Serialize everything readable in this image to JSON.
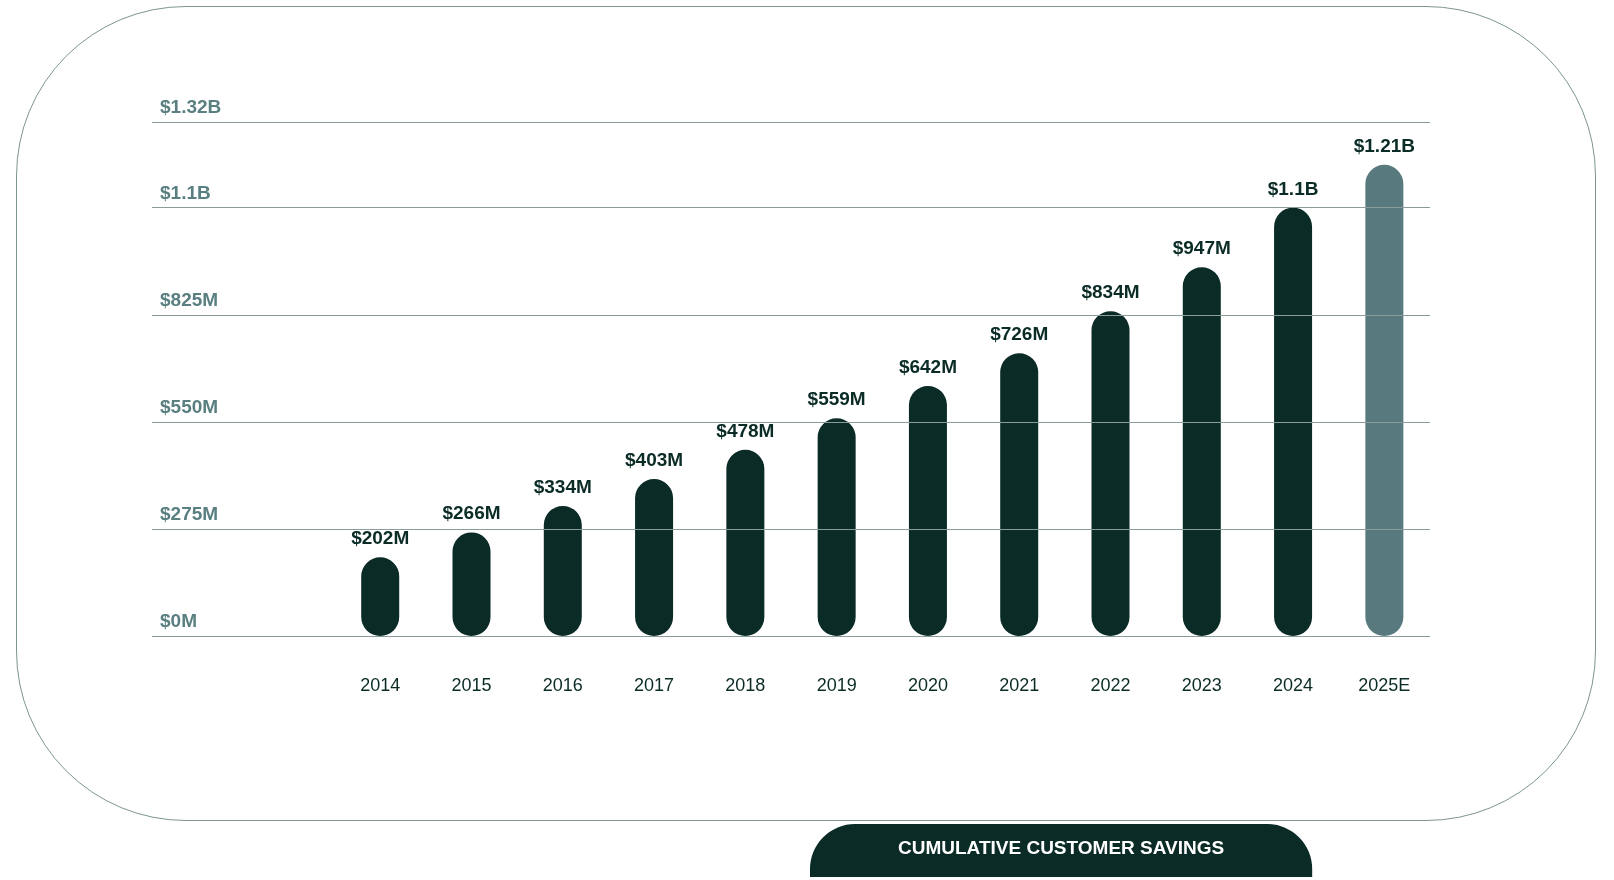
{
  "chart_data": {
    "type": "bar",
    "title": "CUMULATIVE CUSTOMER SAVINGS",
    "categories": [
      null,
      null,
      "2014",
      "2015",
      "2016",
      "2017",
      "2018",
      "2019",
      "2020",
      "2021",
      "2022",
      "2023",
      "2024",
      "2025E"
    ],
    "values": [
      null,
      null,
      202000000,
      266000000,
      334000000,
      403000000,
      478000000,
      559000000,
      642000000,
      726000000,
      834000000,
      947000000,
      1100000000,
      1210000000
    ],
    "colors": [
      "#0a2b26",
      "#0a2b26",
      "#0a2b26",
      "#0a2b26",
      "#0a2b26",
      "#0a2b26",
      "#0a2b26",
      "#0a2b26",
      "#0a2b26",
      "#0a2b26",
      "#0a2b26",
      "#0a2b26",
      "#0a2b26",
      "#587a7e"
    ],
    "value_labels": [
      null,
      null,
      "$202M",
      "$266M",
      "$334M",
      "$403M",
      "$478M",
      "$559M",
      "$642M",
      "$726M",
      "$834M",
      "$947M",
      "$1.1B",
      "$1.21B"
    ],
    "ylim": [
      0,
      1320000000
    ],
    "yticks": [
      {
        "value": 0,
        "label": "$0M"
      },
      {
        "value": 275000000,
        "label": "$275M"
      },
      {
        "value": 550000000,
        "label": "$550M"
      },
      {
        "value": 825000000,
        "label": "$825M"
      },
      {
        "value": 1100000000,
        "label": "$1.1B"
      },
      {
        "value": 1320000000,
        "label": "$1.32B"
      }
    ],
    "grid": "y"
  }
}
